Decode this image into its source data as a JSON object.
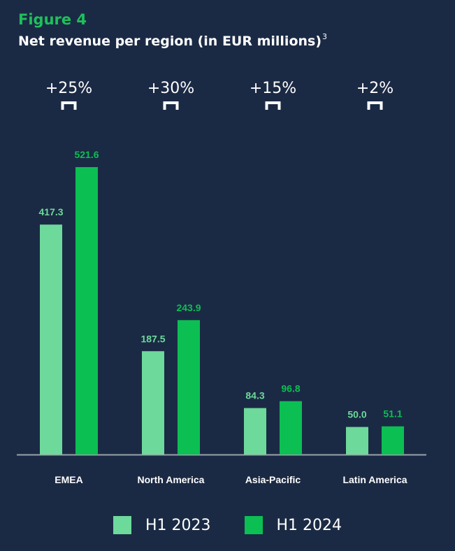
{
  "figure_label": "Figure 4",
  "title": "Net revenue per region (in EUR millions)",
  "title_footnote": "3",
  "colors": {
    "background": "#1b2a44",
    "series_h1_2023": "#6dd99b",
    "series_h1_2024": "#0bbf53",
    "axis": "#9aa3ad",
    "text": "#ffffff"
  },
  "chart_data": {
    "type": "bar",
    "title": "Net revenue per region (in EUR millions)",
    "categories": [
      "EMEA",
      "North America",
      "Asia-Pacific",
      "Latin America"
    ],
    "series": [
      {
        "name": "H1 2023",
        "values": [
          417.3,
          187.5,
          84.3,
          50.0
        ],
        "labels": [
          "417.3",
          "187.5",
          "84.3",
          "50.0"
        ]
      },
      {
        "name": "H1 2024",
        "values": [
          521.6,
          243.9,
          96.8,
          51.1
        ],
        "labels": [
          "521.6",
          "243.9",
          "96.8",
          "51.1"
        ]
      }
    ],
    "growth_labels": [
      "+25%",
      "+30%",
      "+15%",
      "+2%"
    ],
    "ylim": [
      0,
      521.6
    ],
    "grid": false,
    "legend_position": "bottom-center"
  },
  "legend": [
    {
      "label": "H1 2023",
      "color": "#6dd99b"
    },
    {
      "label": "H1 2024",
      "color": "#0bbf53"
    }
  ]
}
